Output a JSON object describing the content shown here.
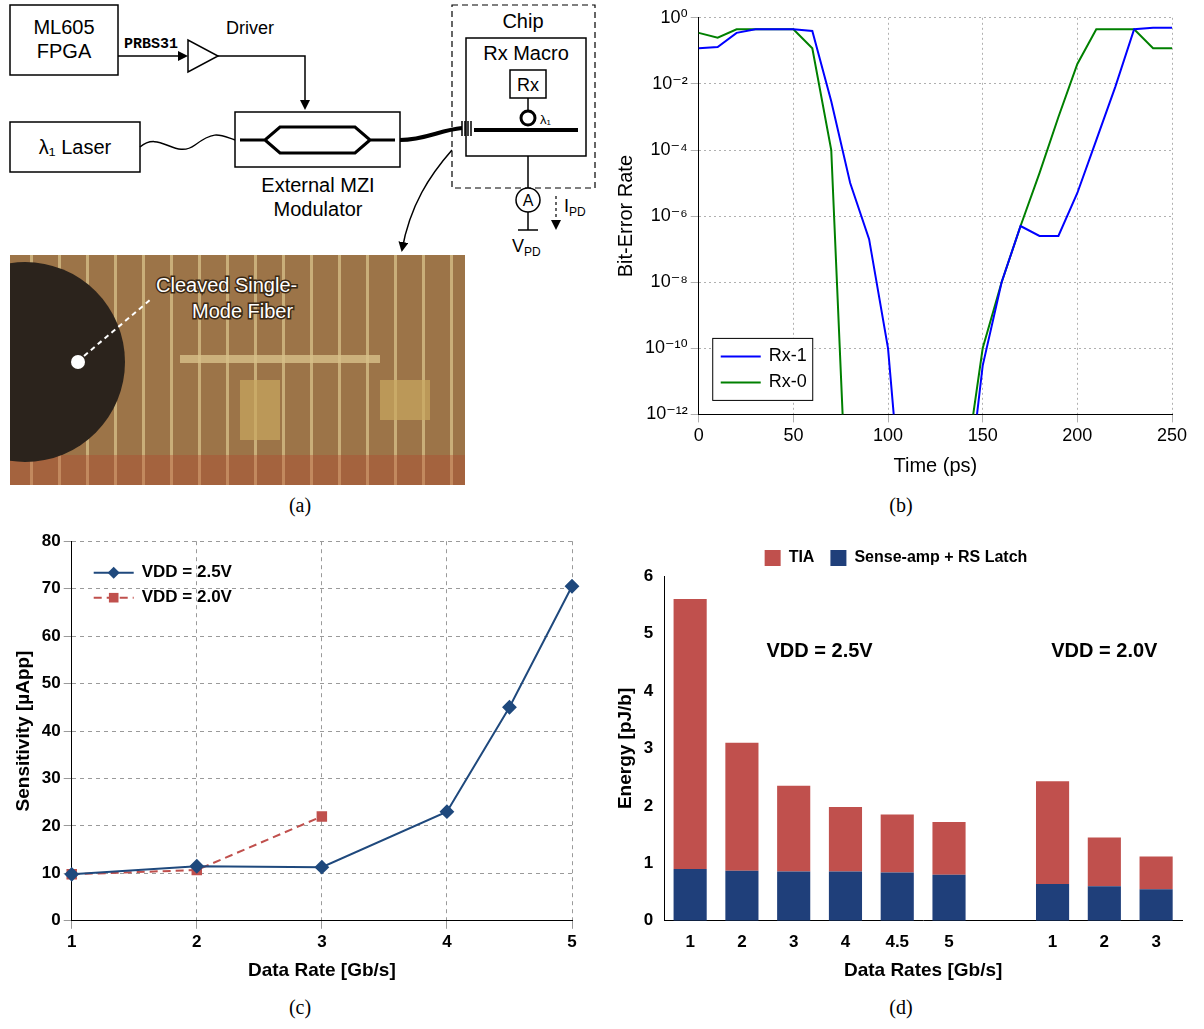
{
  "panel_a": {
    "caption": "(a)",
    "fpga": "ML605 FPGA",
    "signal": "PRBS31",
    "driver": "Driver",
    "laser": "λ₁ Laser",
    "modulator": "External MZI Modulator",
    "chip": "Chip",
    "rx_macro": "Rx Macro",
    "rx": "Rx",
    "ring": "λ₁",
    "ammeter": "A",
    "current": {
      "text": "I",
      "sub": "PD"
    },
    "voltage": {
      "text": "V",
      "sub": "PD"
    },
    "photo_label": "Cleaved Single-Mode Fiber"
  },
  "chart_data": [
    {
      "caption": "(b)",
      "type": "line",
      "x_label": "Time (ps)",
      "y_label": "Bit-Error Rate",
      "log": "y",
      "grid": true,
      "legend": "lower left",
      "xlim": [
        0,
        250
      ],
      "xticks": [
        0,
        50,
        100,
        150,
        200,
        250
      ],
      "ylim": [
        1e-12,
        1
      ],
      "yticks": [
        {
          "value": 1e-12,
          "label": "10⁻¹²"
        },
        {
          "value": 1e-10,
          "label": "10⁻¹⁰"
        },
        {
          "value": 1e-08,
          "label": "10⁻⁸"
        },
        {
          "value": 1e-06,
          "label": "10⁻⁶"
        },
        {
          "value": 0.0001,
          "label": "10⁻⁴"
        },
        {
          "value": 0.01,
          "label": "10⁻²"
        },
        {
          "value": 1,
          "label": "10⁰"
        }
      ],
      "series": [
        {
          "name": "Rx-1",
          "color": "#0000ff",
          "x": [
            0,
            10,
            20,
            30,
            40,
            50,
            60,
            70,
            80,
            90,
            100,
            103,
            125,
            147,
            150,
            160,
            170,
            180,
            190,
            200,
            210,
            220,
            230,
            240,
            250
          ],
          "values": [
            0.12,
            0.13,
            0.35,
            0.45,
            0.45,
            0.45,
            0.4,
            0.003,
            1e-05,
            2e-07,
            1e-10,
            1e-12,
            null,
            1e-12,
            3e-11,
            1e-08,
            5e-07,
            2.5e-07,
            2.5e-07,
            5e-06,
            0.0002,
            0.008,
            0.45,
            0.5,
            0.5
          ]
        },
        {
          "name": "Rx-0",
          "color": "#008000",
          "x": [
            0,
            10,
            20,
            30,
            40,
            50,
            60,
            70,
            76,
            110,
            145,
            150,
            160,
            170,
            180,
            190,
            200,
            210,
            220,
            230,
            240,
            250
          ],
          "values": [
            0.35,
            0.25,
            0.45,
            0.45,
            0.45,
            0.45,
            0.12,
            0.0001,
            1e-12,
            null,
            1e-12,
            1e-10,
            1e-08,
            5e-07,
            2e-05,
            0.001,
            0.04,
            0.45,
            0.45,
            0.45,
            0.12,
            0.12
          ]
        }
      ]
    },
    {
      "caption": "(c)",
      "type": "line",
      "x_label": "Data Rate [Gb/s]",
      "y_label": "Sensitivity [µApp]",
      "grid": true,
      "legend": "upper left",
      "xlim": [
        1,
        5
      ],
      "xticks": [
        1,
        2,
        3,
        4,
        5
      ],
      "ylim": [
        0,
        80
      ],
      "yticks": [
        0,
        10,
        20,
        30,
        40,
        50,
        60,
        70,
        80
      ],
      "series": [
        {
          "name": "VDD = 2.5V",
          "color": "#1f497d",
          "marker": "diamond",
          "line_style": "solid",
          "x": [
            1,
            2,
            3,
            4,
            4.5,
            5
          ],
          "values": [
            9.8,
            11.5,
            11.3,
            23,
            45,
            70.5
          ]
        },
        {
          "name": "VDD = 2.0V",
          "color": "#c0504d",
          "marker": "square",
          "line_style": "dashed",
          "x": [
            1,
            2,
            3
          ],
          "values": [
            9.8,
            10.7,
            22
          ]
        }
      ]
    },
    {
      "caption": "(d)",
      "type": "bar",
      "stacked": true,
      "x_label": "Data Rates [Gb/s]",
      "y_label": "Energy [pJ/b]",
      "grid": false,
      "legend": "top",
      "annotations": [
        "VDD = 2.5V",
        "VDD = 2.0V"
      ],
      "categories": [
        "1",
        "2",
        "3",
        "4",
        "4.5",
        "5",
        null,
        "1",
        "2",
        "3"
      ],
      "ylim": [
        0,
        6
      ],
      "yticks": [
        0,
        1,
        2,
        3,
        4,
        5,
        6
      ],
      "series": [
        {
          "name": "Sense-amp + RS Latch",
          "color": "#1f3f7a",
          "values": [
            0.9,
            0.87,
            0.86,
            0.86,
            0.84,
            0.8,
            null,
            0.64,
            0.6,
            0.55
          ]
        },
        {
          "name": "TIA",
          "color": "#c0504d",
          "values": [
            4.7,
            2.23,
            1.49,
            1.12,
            1.01,
            0.92,
            null,
            1.79,
            0.85,
            0.57
          ]
        }
      ]
    }
  ]
}
